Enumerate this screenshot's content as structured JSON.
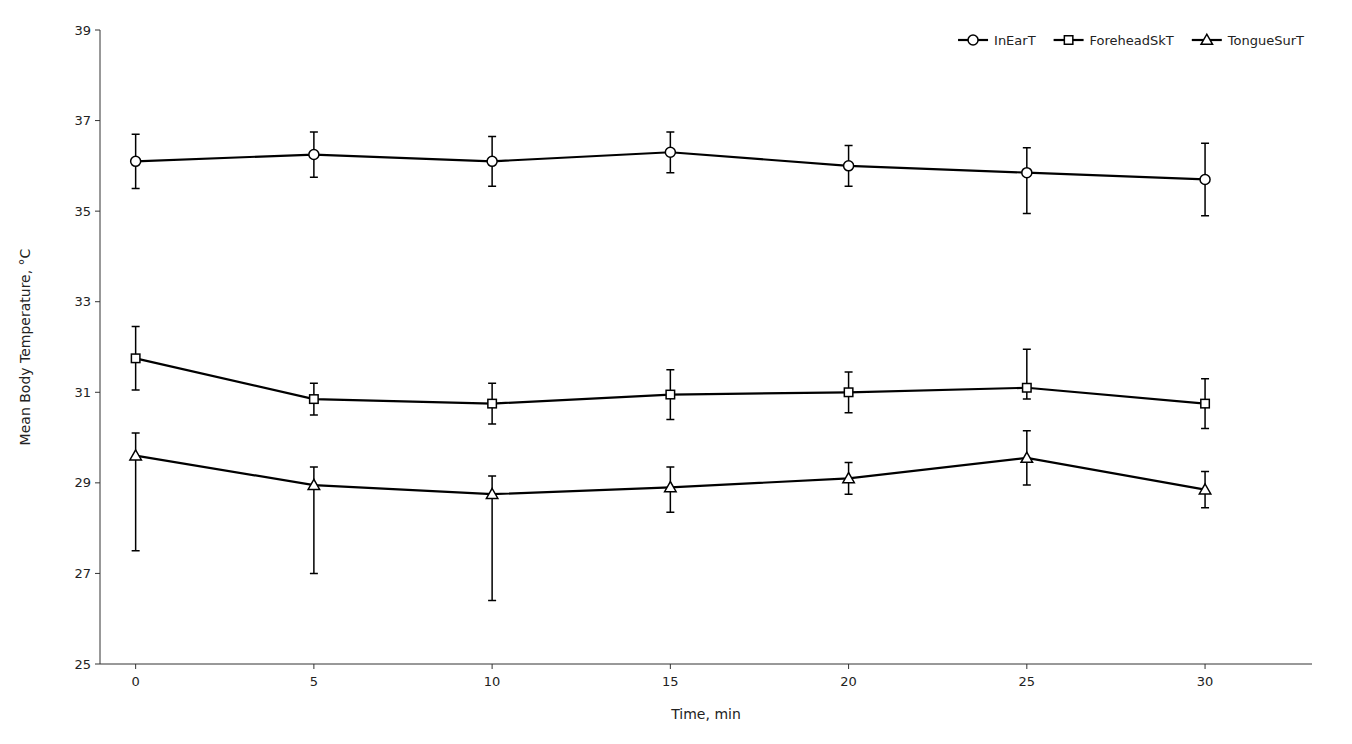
{
  "chart_data": {
    "type": "line",
    "x_label": "Time, min",
    "y_label": "Mean Body Temperature, °C",
    "x": [
      0,
      5,
      10,
      15,
      20,
      25,
      30
    ],
    "series": [
      {
        "name": "InEarT",
        "color": "black",
        "marker": "circle",
        "values": [
          36.1,
          36.25,
          36.1,
          36.3,
          36.0,
          35.85,
          35.7
        ],
        "error_upper": [
          0.6,
          0.5,
          0.55,
          0.45,
          0.45,
          0.55,
          0.8
        ],
        "error_lower": [
          0.6,
          0.5,
          0.55,
          0.45,
          0.45,
          0.9,
          0.8
        ]
      },
      {
        "name": "ForeheadSkT",
        "color": "black",
        "marker": "square",
        "values": [
          31.75,
          30.85,
          30.75,
          30.95,
          31.0,
          31.1,
          30.75
        ],
        "error_upper": [
          0.7,
          0.35,
          0.45,
          0.55,
          0.45,
          0.85,
          0.55
        ],
        "error_lower": [
          0.7,
          0.35,
          0.45,
          0.55,
          0.45,
          0.25,
          0.55
        ]
      },
      {
        "name": "TongueSurT",
        "color": "black",
        "marker": "triangle",
        "values": [
          29.6,
          28.95,
          28.75,
          28.9,
          29.1,
          29.55,
          28.85
        ],
        "error_upper": [
          0.5,
          0.4,
          0.4,
          0.45,
          0.35,
          0.6,
          0.4
        ],
        "error_lower": [
          2.1,
          1.95,
          2.35,
          0.55,
          0.35,
          0.6,
          0.4
        ]
      }
    ],
    "xlim": [
      -1.0,
      33
    ],
    "ylim": [
      25,
      39
    ],
    "xticks": [
      0,
      5,
      10,
      15,
      20,
      25,
      30
    ],
    "yticks": [
      25,
      27,
      29,
      31,
      33,
      35,
      37,
      39
    ],
    "legend": "upper right",
    "grid": false
  }
}
